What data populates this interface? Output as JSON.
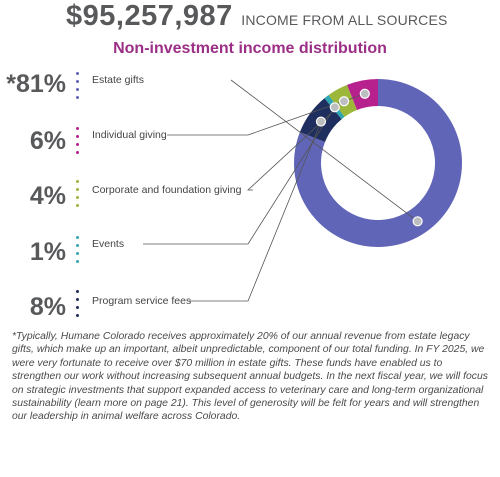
{
  "header": {
    "total": "$95,257,987",
    "total_label": "INCOME FROM ALL SOURCES",
    "subtitle": "Non-investment income distribution"
  },
  "chart_data": {
    "type": "donut",
    "title": "Non-investment income distribution",
    "categories": [
      "Estate gifts",
      "Individual giving",
      "Corporate and foundation giving",
      "Events",
      "Program service fees"
    ],
    "values": [
      81,
      6,
      4,
      1,
      8
    ],
    "value_labels": [
      "*81%",
      "6%",
      "4%",
      "1%",
      "8%"
    ],
    "colors": [
      "#6065b8",
      "#b7218e",
      "#9cb73a",
      "#2ca7b3",
      "#1e2e5e"
    ],
    "legend": "left"
  },
  "footnote": "*Typically, Humane Colorado receives approximately 20% of our annual revenue from estate legacy gifts, which make up an important, albeit unpredictable, component of our total funding. In FY 2025, we were very fortunate to receive over $70 million in estate gifts. These funds have enabled us to strengthen our work without increasing subsequent annual budgets. In the next fiscal year, we will focus on strategic investments that support expanded access to veterinary care and long-term organizational sustainability (learn more on page 21). This level of generosity will be felt for years and will strengthen our leadership in animal welfare across Colorado."
}
